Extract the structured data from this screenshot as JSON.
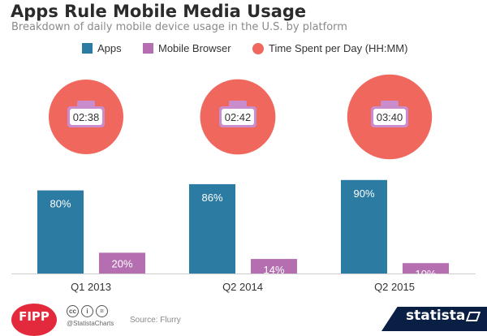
{
  "header": {
    "title": "Apps Rule Mobile Media Usage",
    "subtitle": "Breakdown of daily mobile device usage in the U.S. by platform"
  },
  "legend": {
    "apps": "Apps",
    "browser": "Mobile Browser",
    "time": "Time Spent per Day (HH:MM)"
  },
  "colors": {
    "apps": "#2b7ba3",
    "browser": "#b56fb0",
    "time": "#f0675d",
    "clock_frame": "#c98ccd"
  },
  "chart_data": {
    "type": "bar",
    "categories": [
      "Q1 2013",
      "Q2 2014",
      "Q2 2015"
    ],
    "series": [
      {
        "name": "Apps",
        "values": [
          80,
          86,
          90
        ],
        "labels": [
          "80%",
          "86%",
          "90%"
        ]
      },
      {
        "name": "Mobile Browser",
        "values": [
          20,
          14,
          10
        ],
        "labels": [
          "20%",
          "14%",
          "10%"
        ]
      },
      {
        "name": "Time Spent per Day (HH:MM)",
        "values": [
          "02:38",
          "02:42",
          "03:40"
        ]
      }
    ],
    "ylim": [
      0,
      100
    ],
    "grid": false,
    "legend_position": "top"
  },
  "footer": {
    "logo": "FIPP",
    "license_icons": [
      "cc",
      "i",
      "="
    ],
    "handle": "@StatistaCharts",
    "source": "Source: Flurry",
    "brand": "statista"
  }
}
